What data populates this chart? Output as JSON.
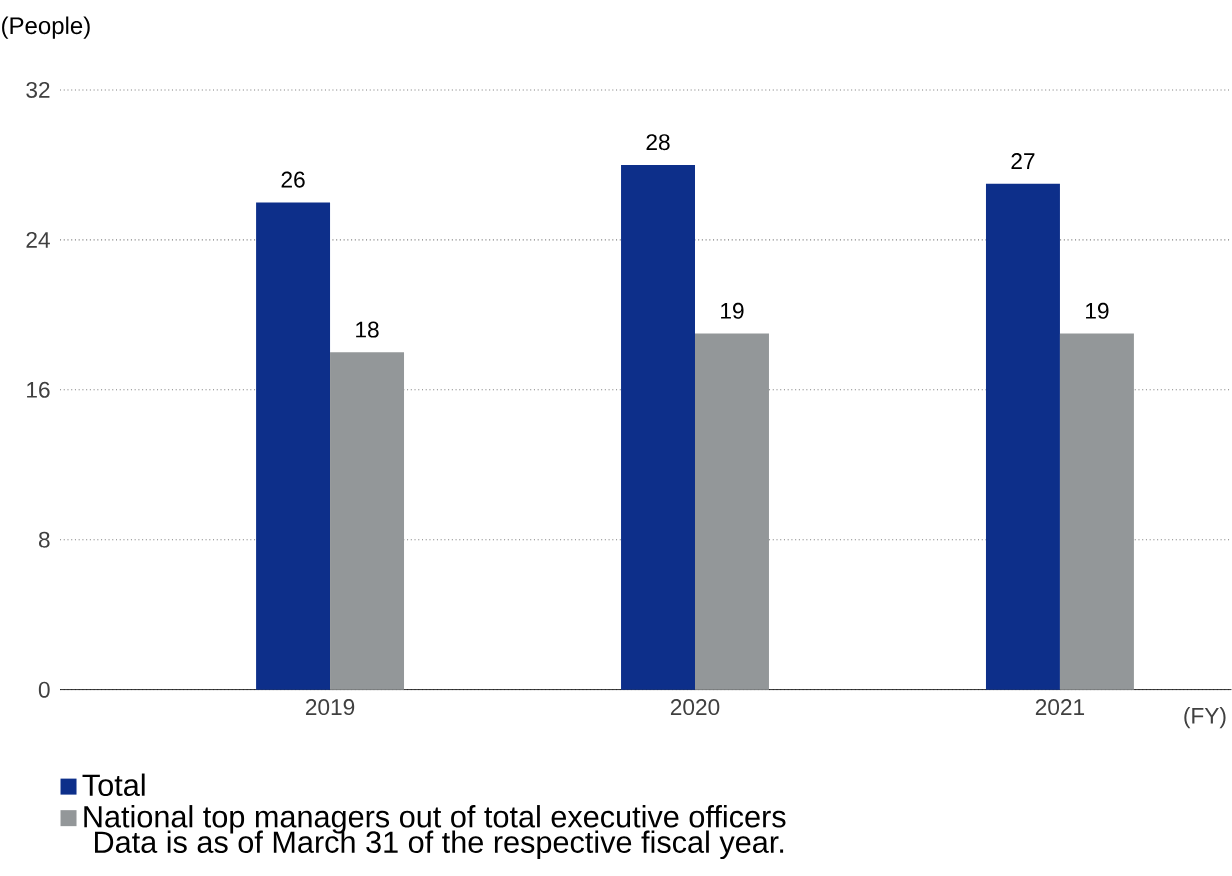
{
  "chart_data": {
    "type": "bar",
    "ylabel": "(People)",
    "xlabel": "(FY)",
    "categories": [
      "2019",
      "2020",
      "2021"
    ],
    "series": [
      {
        "name": "Total",
        "color": "#0d2f8a",
        "values": [
          26,
          28,
          27
        ]
      },
      {
        "name": "National top managers out of total executive officers",
        "color": "#939799",
        "values": [
          18,
          19,
          19
        ]
      }
    ],
    "ylim": [
      0,
      32
    ],
    "yticks": [
      0,
      8,
      16,
      24,
      32
    ],
    "grid": "y",
    "data_labels": true,
    "legend": "bottom",
    "annotations": [
      "Data is as of March 31 of the respective fiscal year."
    ]
  }
}
